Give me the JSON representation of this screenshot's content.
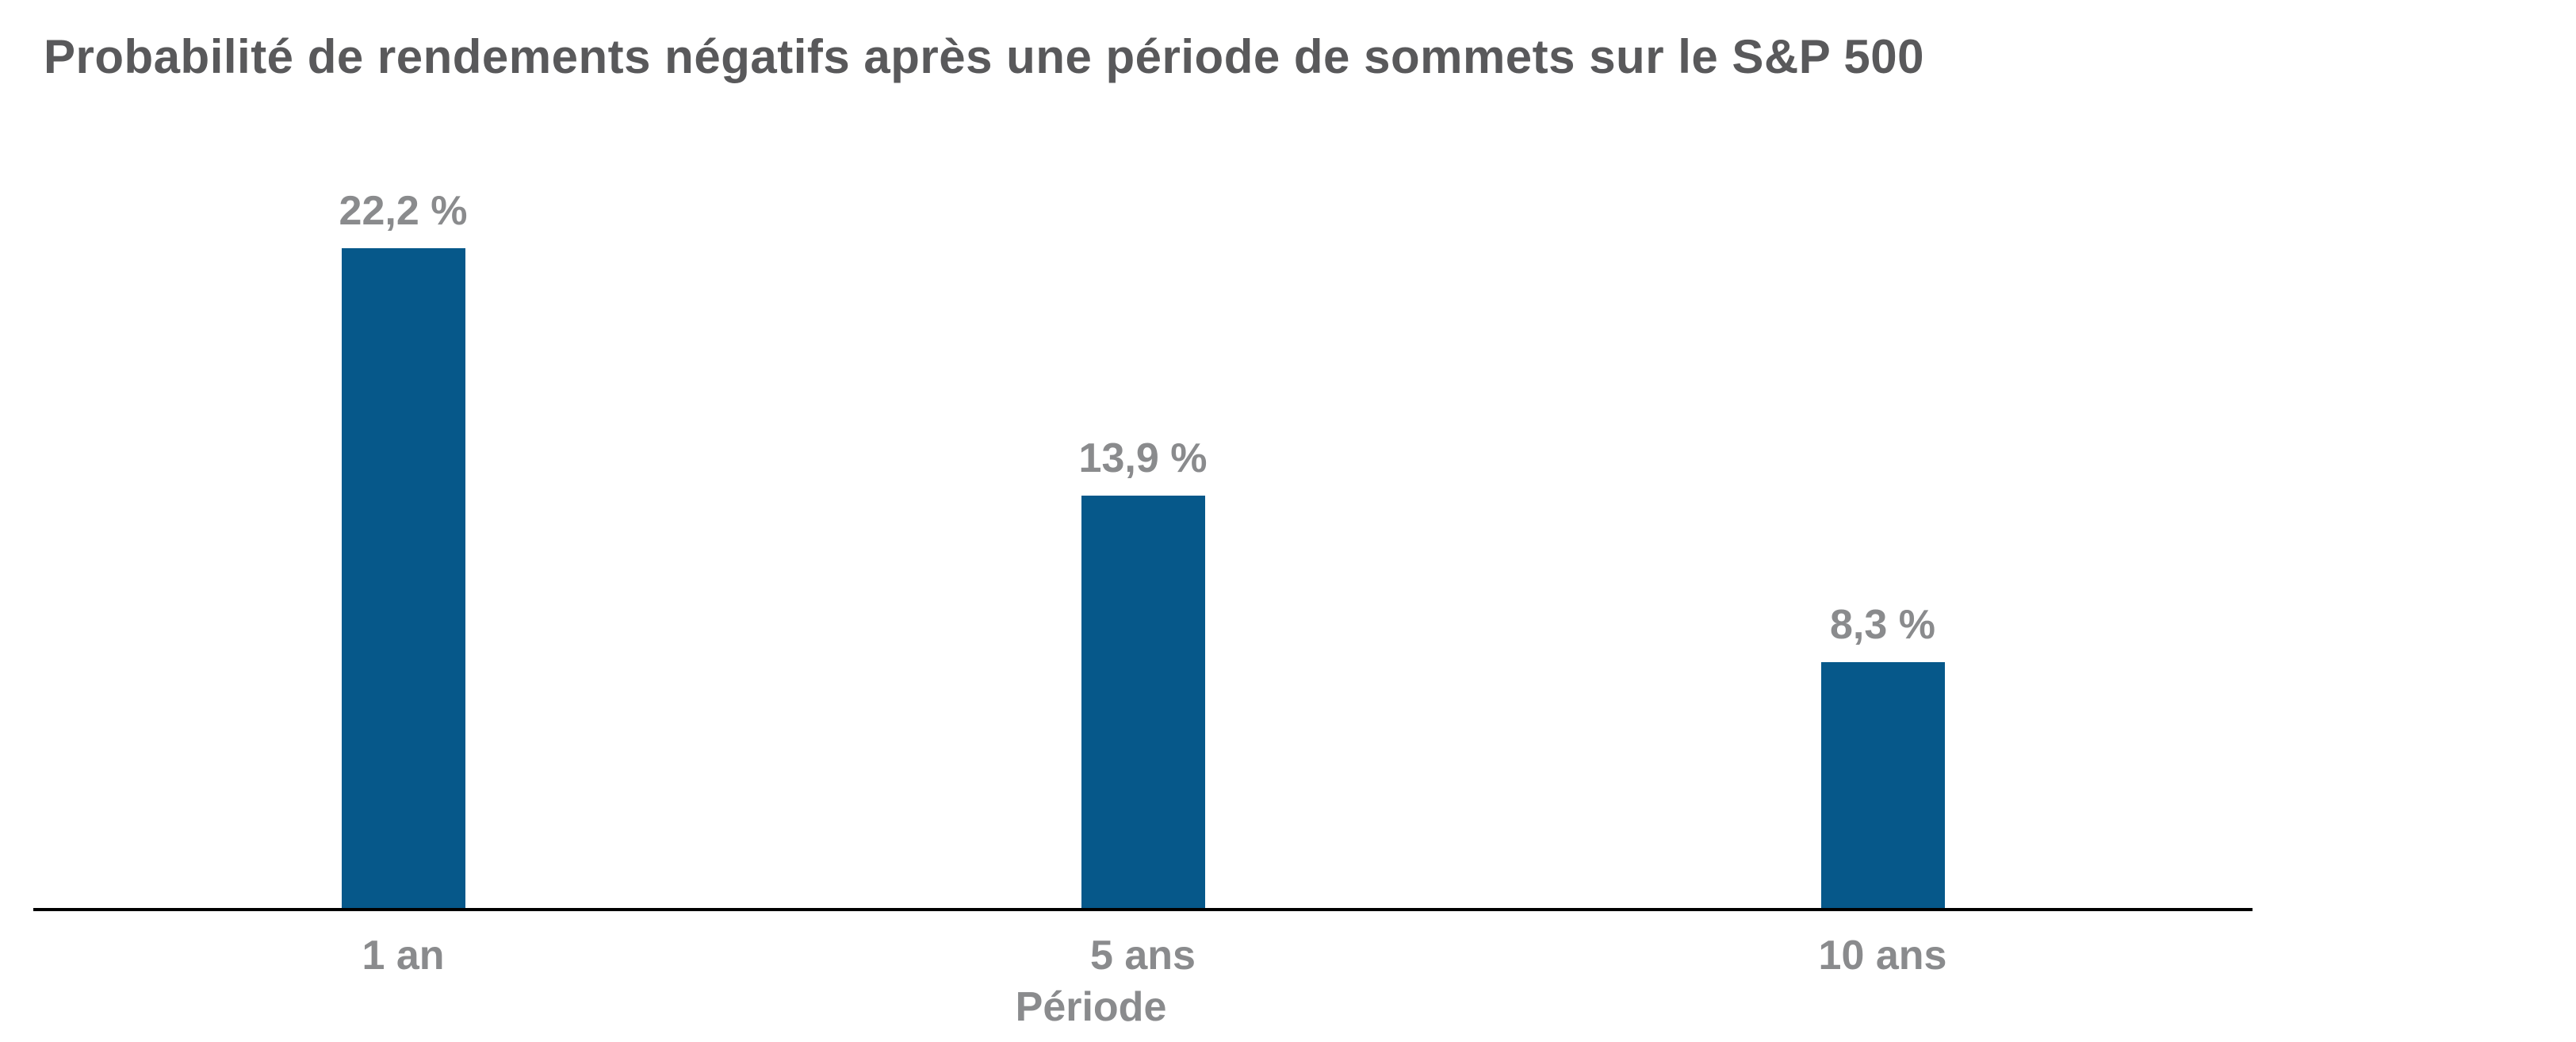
{
  "chart_data": {
    "type": "bar",
    "title": "Probabilité de rendements négatifs après une période de sommets sur le S&P 500",
    "categories": [
      "1 an",
      "5 ans",
      "10 ans"
    ],
    "values": [
      22.2,
      13.9,
      8.3
    ],
    "value_labels": [
      "22,2 %",
      "13,9 %",
      "8,3 %"
    ],
    "xlabel": "Période",
    "ylabel": "",
    "ylim": [
      0,
      24.8
    ],
    "grid": false,
    "legend": false,
    "colors": {
      "bar": "#06588A",
      "title_text": "#59595B",
      "label_text": "#8A8B8D",
      "axis_line": "#000000",
      "background": "#FFFFFF"
    }
  }
}
